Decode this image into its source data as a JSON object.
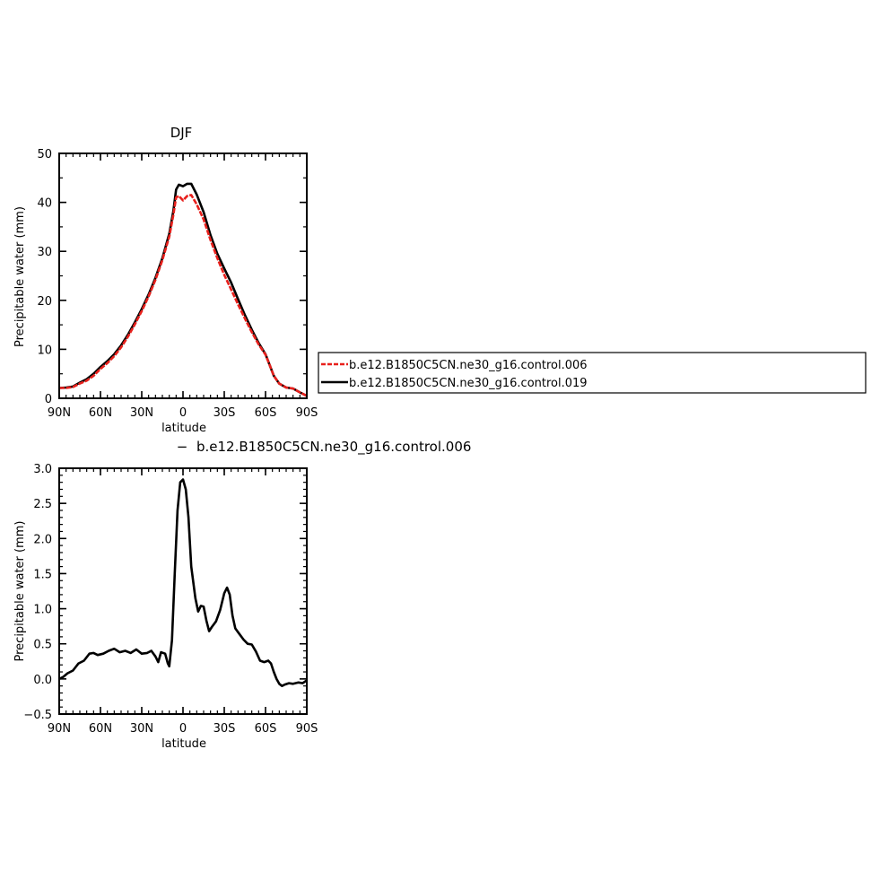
{
  "chart_data": [
    {
      "type": "line",
      "title": "DJF",
      "xlabel": "latitude",
      "ylabel": "Precipitable water  (mm)",
      "xlim": [
        90,
        -90
      ],
      "ylim": [
        0,
        50
      ],
      "xticks": [
        {
          "v": 90,
          "label": "90N"
        },
        {
          "v": 60,
          "label": "60N"
        },
        {
          "v": 30,
          "label": "30N"
        },
        {
          "v": 0,
          "label": "0"
        },
        {
          "v": -30,
          "label": "30S"
        },
        {
          "v": -60,
          "label": "60S"
        },
        {
          "v": -90,
          "label": "90S"
        }
      ],
      "yticks": [
        {
          "v": 0,
          "label": "0"
        },
        {
          "v": 10,
          "label": "10"
        },
        {
          "v": 20,
          "label": "20"
        },
        {
          "v": 30,
          "label": "30"
        },
        {
          "v": 40,
          "label": "40"
        },
        {
          "v": 50,
          "label": "50"
        }
      ],
      "series": [
        {
          "name": "b.e12.B1850C5CN.ne30_g16.control.006",
          "color": "#e8201c",
          "dashed": true,
          "points": [
            [
              90,
              2.1
            ],
            [
              85,
              2.1
            ],
            [
              80,
              2.3
            ],
            [
              75,
              3.0
            ],
            [
              70,
              3.6
            ],
            [
              65,
              4.6
            ],
            [
              60,
              6.0
            ],
            [
              55,
              7.2
            ],
            [
              50,
              8.6
            ],
            [
              45,
              10.4
            ],
            [
              40,
              12.6
            ],
            [
              35,
              15.1
            ],
            [
              30,
              17.8
            ],
            [
              25,
              20.8
            ],
            [
              20,
              24.2
            ],
            [
              15,
              28.2
            ],
            [
              10,
              33.0
            ],
            [
              7,
              37.5
            ],
            [
              5,
              41.0
            ],
            [
              3,
              41.3
            ],
            [
              0,
              40.4
            ],
            [
              -3,
              41.3
            ],
            [
              -6,
              41.5
            ],
            [
              -10,
              39.6
            ],
            [
              -15,
              36.5
            ],
            [
              -20,
              32.3
            ],
            [
              -25,
              28.6
            ],
            [
              -30,
              25.2
            ],
            [
              -35,
              22.2
            ],
            [
              -40,
              19.2
            ],
            [
              -45,
              16.3
            ],
            [
              -50,
              13.5
            ],
            [
              -55,
              11.0
            ],
            [
              -60,
              8.9
            ],
            [
              -63,
              6.8
            ],
            [
              -66,
              4.6
            ],
            [
              -70,
              3.0
            ],
            [
              -75,
              2.2
            ],
            [
              -80,
              2.0
            ],
            [
              -85,
              1.2
            ],
            [
              -90,
              0.5
            ]
          ]
        },
        {
          "name": "b.e12.B1850C5CN.ne30_g16.control.019",
          "color": "#000000",
          "dashed": false,
          "points": [
            [
              90,
              2.1
            ],
            [
              85,
              2.2
            ],
            [
              80,
              2.4
            ],
            [
              75,
              3.2
            ],
            [
              70,
              3.9
            ],
            [
              65,
              5.0
            ],
            [
              60,
              6.4
            ],
            [
              55,
              7.6
            ],
            [
              50,
              9.0
            ],
            [
              45,
              10.8
            ],
            [
              40,
              13.0
            ],
            [
              35,
              15.5
            ],
            [
              30,
              18.2
            ],
            [
              25,
              21.2
            ],
            [
              20,
              24.6
            ],
            [
              15,
              28.6
            ],
            [
              10,
              33.6
            ],
            [
              7,
              38.3
            ],
            [
              5,
              42.6
            ],
            [
              3,
              43.6
            ],
            [
              0,
              43.3
            ],
            [
              -3,
              43.8
            ],
            [
              -6,
              43.8
            ],
            [
              -10,
              41.6
            ],
            [
              -15,
              38.0
            ],
            [
              -20,
              33.3
            ],
            [
              -25,
              29.5
            ],
            [
              -30,
              26.5
            ],
            [
              -35,
              23.6
            ],
            [
              -40,
              20.3
            ],
            [
              -45,
              17.0
            ],
            [
              -50,
              14.0
            ],
            [
              -55,
              11.3
            ],
            [
              -60,
              9.0
            ],
            [
              -63,
              6.8
            ],
            [
              -66,
              4.6
            ],
            [
              -70,
              3.0
            ],
            [
              -75,
              2.2
            ],
            [
              -80,
              2.0
            ],
            [
              -85,
              1.2
            ],
            [
              -90,
              0.5
            ]
          ]
        }
      ]
    },
    {
      "type": "line",
      "title": "b.e12.B1850C5CN.ne30_g16.control.006",
      "title_marker": "−",
      "xlabel": "latitude",
      "ylabel": "Precipitable water  (mm)",
      "xlim": [
        90,
        -90
      ],
      "ylim": [
        -0.5,
        3.0
      ],
      "xticks": [
        {
          "v": 90,
          "label": "90N"
        },
        {
          "v": 60,
          "label": "60N"
        },
        {
          "v": 30,
          "label": "30N"
        },
        {
          "v": 0,
          "label": "0"
        },
        {
          "v": -30,
          "label": "30S"
        },
        {
          "v": -60,
          "label": "60S"
        },
        {
          "v": -90,
          "label": "90S"
        }
      ],
      "yticks": [
        {
          "v": -0.5,
          "label": "−0.5"
        },
        {
          "v": 0.0,
          "label": "0.0"
        },
        {
          "v": 0.5,
          "label": "0.5"
        },
        {
          "v": 1.0,
          "label": "1.0"
        },
        {
          "v": 1.5,
          "label": "1.5"
        },
        {
          "v": 2.0,
          "label": "2.0"
        },
        {
          "v": 2.5,
          "label": "2.5"
        },
        {
          "v": 3.0,
          "label": "3.0"
        }
      ],
      "series": [
        {
          "color": "#000000",
          "dashed": false,
          "points": [
            [
              90,
              0.0
            ],
            [
              87,
              0.03
            ],
            [
              84,
              0.08
            ],
            [
              80,
              0.12
            ],
            [
              76,
              0.22
            ],
            [
              72,
              0.26
            ],
            [
              68,
              0.36
            ],
            [
              65,
              0.37
            ],
            [
              62,
              0.34
            ],
            [
              58,
              0.36
            ],
            [
              54,
              0.4
            ],
            [
              50,
              0.43
            ],
            [
              46,
              0.38
            ],
            [
              42,
              0.4
            ],
            [
              38,
              0.37
            ],
            [
              34,
              0.42
            ],
            [
              30,
              0.36
            ],
            [
              26,
              0.37
            ],
            [
              23,
              0.4
            ],
            [
              20,
              0.32
            ],
            [
              18,
              0.24
            ],
            [
              16,
              0.38
            ],
            [
              13,
              0.36
            ],
            [
              11,
              0.22
            ],
            [
              10,
              0.18
            ],
            [
              8,
              0.55
            ],
            [
              6,
              1.5
            ],
            [
              4,
              2.4
            ],
            [
              2,
              2.8
            ],
            [
              0,
              2.84
            ],
            [
              -2,
              2.7
            ],
            [
              -4,
              2.3
            ],
            [
              -6,
              1.6
            ],
            [
              -9,
              1.15
            ],
            [
              -11,
              0.96
            ],
            [
              -13,
              1.04
            ],
            [
              -15,
              1.03
            ],
            [
              -17,
              0.83
            ],
            [
              -19,
              0.68
            ],
            [
              -21,
              0.74
            ],
            [
              -24,
              0.82
            ],
            [
              -27,
              0.98
            ],
            [
              -30,
              1.22
            ],
            [
              -32,
              1.3
            ],
            [
              -34,
              1.2
            ],
            [
              -36,
              0.9
            ],
            [
              -38,
              0.72
            ],
            [
              -41,
              0.64
            ],
            [
              -44,
              0.56
            ],
            [
              -47,
              0.5
            ],
            [
              -50,
              0.49
            ],
            [
              -53,
              0.39
            ],
            [
              -56,
              0.26
            ],
            [
              -59,
              0.24
            ],
            [
              -62,
              0.26
            ],
            [
              -64,
              0.22
            ],
            [
              -66,
              0.1
            ],
            [
              -68,
              0.0
            ],
            [
              -70,
              -0.07
            ],
            [
              -72,
              -0.1
            ],
            [
              -74,
              -0.08
            ],
            [
              -77,
              -0.06
            ],
            [
              -80,
              -0.07
            ],
            [
              -84,
              -0.05
            ],
            [
              -87,
              -0.06
            ],
            [
              -90,
              -0.02
            ]
          ]
        }
      ]
    }
  ],
  "legend": {
    "items": [
      {
        "label": "b.e12.B1850C5CN.ne30_g16.control.006",
        "color": "#e8201c",
        "dashed": true
      },
      {
        "label": "b.e12.B1850C5CN.ne30_g16.control.019",
        "color": "#000000",
        "dashed": false
      }
    ]
  }
}
